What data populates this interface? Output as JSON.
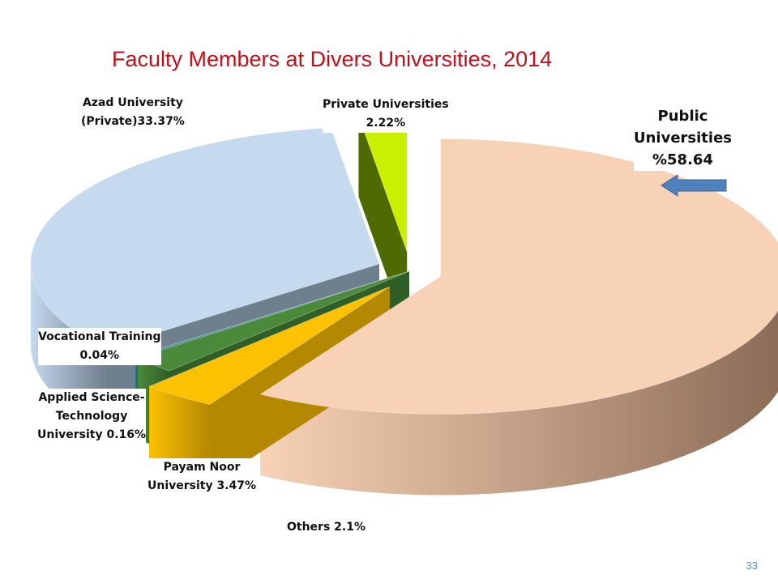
{
  "slide": {
    "page_number": "33"
  },
  "chart_data": {
    "type": "pie",
    "title": "Faculty Members at Divers Universities, 2014",
    "series": [
      {
        "name": "Faculty Members",
        "slices": [
          {
            "key": "public",
            "value": 58.64,
            "label_lines": [
              "Public",
              "Universities",
              "%58.64"
            ],
            "color": "#f8d2b6",
            "side": "#8a6a55",
            "exploded": true
          },
          {
            "key": "payam_noor",
            "value": 3.47,
            "label_lines": [
              "Payam Noor",
              "University 3.47%"
            ],
            "color": "#fcc100",
            "side": "#b48800",
            "exploded": true
          },
          {
            "key": "others",
            "value": 2.1,
            "label_lines": [
              "Others 2.1%"
            ],
            "color": "#4a8a3a",
            "side": "#2f5f26",
            "exploded": false
          },
          {
            "key": "applied_science",
            "value": 0.16,
            "label_lines": [
              "Applied Science-",
              "Technology",
              "University 0.16%"
            ],
            "color": "#2f7a8a",
            "side": "#1f5662",
            "exploded": false
          },
          {
            "key": "vocational",
            "value": 0.04,
            "label_lines": [
              "Vocational Training",
              "0.04%"
            ],
            "color": "#3aa0b8",
            "side": "#2a6f80",
            "exploded": false
          },
          {
            "key": "azad",
            "value": 33.37,
            "label_lines": [
              "Azad University",
              "(Private)33.37%"
            ],
            "color": "#c5d9ef",
            "side": "#6e7f8e",
            "exploded": true
          },
          {
            "key": "private",
            "value": 2.22,
            "label_lines": [
              "Private Universities",
              "2.22%"
            ],
            "color": "#c8f000",
            "side": "#4f6a00",
            "exploded": true
          }
        ]
      }
    ],
    "legend": "none",
    "colors": {
      "title": "#c0101c",
      "pointer_arrow": "#4f81bd",
      "page_number": "#5b8fd6"
    }
  }
}
